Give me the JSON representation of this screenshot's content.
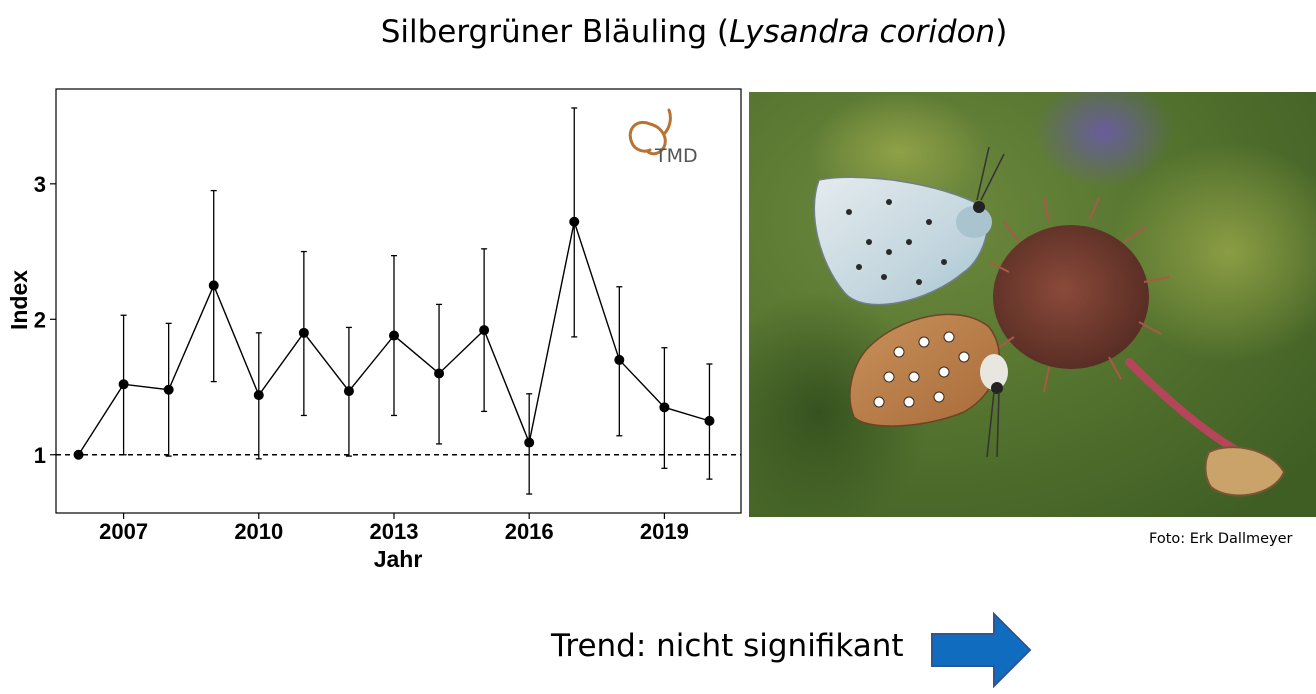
{
  "title": {
    "main": "Silbergrüner Bläuling (",
    "latin": "Lysandra coridon",
    "close": ")"
  },
  "logo": {
    "text": "TMD"
  },
  "photo": {
    "credit": "Foto: Erk Dallmeyer"
  },
  "trend": {
    "label": "Trend: nicht signifikant"
  },
  "colors": {
    "arrow_fill": "#0f6cbf",
    "arrow_stroke": "#2f5597",
    "logo_color": "#b87333"
  },
  "chart_data": {
    "type": "line",
    "title": "",
    "xlabel": "Jahr",
    "ylabel": "Index",
    "xlim": [
      2005.5,
      2020.7
    ],
    "ylim": [
      0.57,
      3.7
    ],
    "xticks": [
      2007,
      2010,
      2013,
      2016,
      2019
    ],
    "yticks": [
      1,
      2,
      3
    ],
    "reference_line": {
      "y": 1,
      "style": "dashed"
    },
    "grid": false,
    "legend": "none",
    "series": [
      {
        "x": [
          2006,
          2007,
          2008,
          2009,
          2010,
          2011,
          2012,
          2013,
          2014,
          2015,
          2016,
          2017,
          2018,
          2019,
          2020
        ],
        "y": [
          1.0,
          1.52,
          1.48,
          2.25,
          1.44,
          1.9,
          1.47,
          1.88,
          1.6,
          1.92,
          1.09,
          2.72,
          1.7,
          1.35,
          1.25
        ],
        "lower": [
          1.0,
          1.0,
          0.99,
          1.54,
          0.97,
          1.29,
          0.99,
          1.29,
          1.08,
          1.32,
          0.71,
          1.87,
          1.14,
          0.9,
          0.82
        ],
        "upper": [
          1.0,
          2.03,
          1.97,
          2.95,
          1.9,
          2.5,
          1.94,
          2.47,
          2.11,
          2.52,
          1.45,
          3.56,
          2.24,
          1.79,
          1.67
        ]
      }
    ]
  }
}
